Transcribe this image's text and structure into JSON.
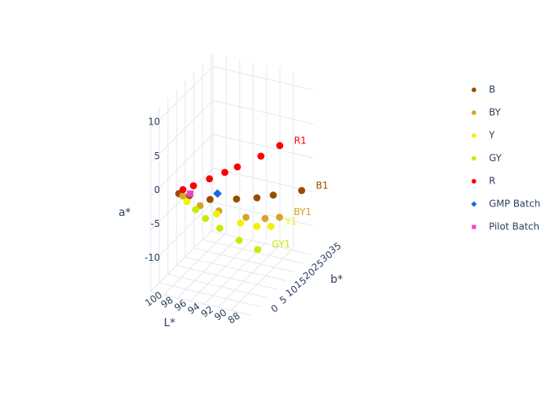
{
  "chart_data": {
    "type": "scatter3d",
    "xaxis_title": "L*",
    "yaxis_title": "b*",
    "zaxis_title": "a*",
    "xlim": [
      85,
      100
    ],
    "xticks": [
      88,
      90,
      92,
      94,
      96,
      98,
      100
    ],
    "ylim": [
      0,
      36
    ],
    "yticks": [
      0,
      5,
      10,
      15,
      20,
      25,
      30,
      35
    ],
    "zlim": [
      -14,
      12
    ],
    "zticks": [
      -10,
      -5,
      0,
      5,
      10
    ],
    "grid": true,
    "legend_position": "right",
    "series": [
      {
        "name": "B",
        "color": "#994c00",
        "symbol": "circle",
        "label": "B1",
        "x": [
          95.8,
          95.0,
          93.2,
          90.8,
          89.3,
          87.9,
          86.5
        ],
        "y": [
          0,
          3,
          8,
          14,
          20,
          24,
          35
        ],
        "z": [
          1.4,
          0.5,
          -0.9,
          -1.8,
          -2.8,
          -3.1,
          -4.9
        ]
      },
      {
        "name": "BY",
        "color": "#d4a52a",
        "symbol": "circle",
        "label": "BY1",
        "x": [
          95.2,
          93.9,
          92.4,
          89.9,
          88.6,
          88.0
        ],
        "y": [
          0,
          5,
          10,
          16,
          22,
          28
        ],
        "z": [
          1.2,
          -1.2,
          -2.9,
          -4.8,
          -6.2,
          -7.4
        ]
      },
      {
        "name": "Y",
        "color": "#f2f200",
        "symbol": "circle",
        "label": "Y1",
        "x": [
          94.6,
          92.2,
          90.2,
          89.3,
          88.5
        ],
        "y": [
          0,
          8,
          14,
          20,
          25
        ],
        "z": [
          0.5,
          -2.8,
          -5.2,
          -7.0,
          -8.1
        ]
      },
      {
        "name": "GY",
        "color": "#c8ec00",
        "symbol": "circle",
        "label": "GY1",
        "x": [
          93.8,
          93.1,
          92.0,
          90.4,
          89.2
        ],
        "y": [
          2,
          5,
          9,
          14,
          20
        ],
        "z": [
          -1.0,
          -2.9,
          -5.1,
          -7.8,
          -10.4
        ]
      },
      {
        "name": "R",
        "color": "#ff0000",
        "symbol": "circle",
        "label": "R1",
        "x": [
          95.7,
          94.9,
          93.8,
          92.8,
          91.7,
          90.0,
          89.0
        ],
        "y": [
          2,
          5,
          10,
          15,
          18,
          25,
          32
        ],
        "z": [
          1.5,
          1.5,
          1.5,
          1.4,
          1.7,
          1.9,
          1.9
        ]
      },
      {
        "name": "GMP Batch",
        "color": "#1a66e0",
        "symbol": "diamond",
        "x": [
          92.6
        ],
        "y": [
          10
        ],
        "z": [
          -0.4
        ]
      },
      {
        "name": "Pilot Batch",
        "color": "#ee44cc",
        "symbol": "square",
        "x": [
          94.1
        ],
        "y": [
          0
        ],
        "z": [
          1.8
        ]
      }
    ]
  }
}
